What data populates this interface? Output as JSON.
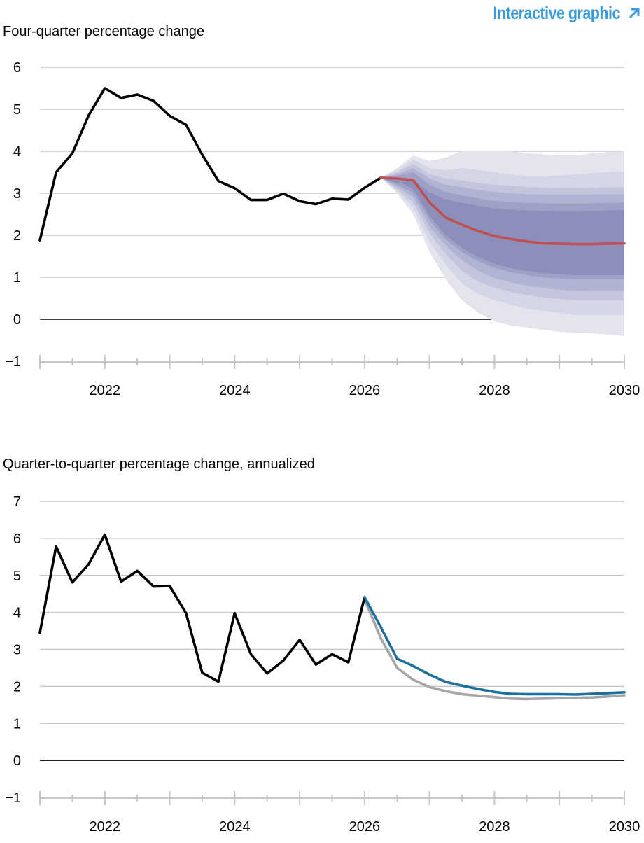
{
  "header": {
    "link_label": "Interactive graphic",
    "link_color": "#3a9ad9"
  },
  "colors": {
    "history": "#000000",
    "forecast_median": "#c0504d",
    "fan": [
      "#e4e4ee",
      "#d4d5e5",
      "#c3c5dc",
      "#b1b3d2",
      "#9ea1c6",
      "#8c8fbb"
    ],
    "series_blue": "#1d6f9c",
    "series_gray": "#a6a6a6",
    "grid": "#c8c8c8"
  },
  "chart_data": [
    {
      "type": "line",
      "title": "Four-quarter percentage change",
      "xlabel": "",
      "ylabel": "",
      "ylim": [
        -1,
        6
      ],
      "xlim": [
        2021.0,
        2030.0
      ],
      "yticks": [
        "−1",
        "0",
        "1",
        "2",
        "3",
        "4",
        "5",
        "6"
      ],
      "xticks": [
        "2022",
        "2024",
        "2026",
        "2028",
        "2030"
      ],
      "grid": true,
      "series": [
        {
          "role": "history",
          "x": [
            2021.0,
            2021.25,
            2021.5,
            2021.75,
            2022.0,
            2022.25,
            2022.5,
            2022.75,
            2023.0,
            2023.25,
            2023.5,
            2023.75,
            2024.0,
            2024.25,
            2024.5,
            2024.75,
            2025.0,
            2025.25,
            2025.5,
            2025.75,
            2026.0,
            2026.25
          ],
          "values": [
            1.88,
            3.5,
            3.95,
            4.85,
            5.5,
            5.27,
            5.35,
            5.2,
            4.84,
            4.63,
            3.92,
            3.29,
            3.12,
            2.84,
            2.84,
            2.99,
            2.81,
            2.74,
            2.87,
            2.85,
            3.13,
            3.37
          ]
        },
        {
          "role": "forecast median",
          "x": [
            2026.25,
            2026.5,
            2026.75,
            2027.0,
            2027.25,
            2027.5,
            2027.75,
            2028.0,
            2028.25,
            2028.5,
            2028.75,
            2029.0,
            2029.25,
            2029.5,
            2029.75,
            2030.0
          ],
          "values": [
            3.37,
            3.35,
            3.31,
            2.78,
            2.42,
            2.25,
            2.1,
            1.98,
            1.91,
            1.85,
            1.81,
            1.8,
            1.79,
            1.79,
            1.8,
            1.81
          ]
        }
      ],
      "bands": {
        "x": [
          2026.25,
          2026.5,
          2026.75,
          2027.0,
          2027.25,
          2027.5,
          2027.75,
          2028.0,
          2028.25,
          2028.5,
          2028.75,
          2029.0,
          2029.25,
          2029.5,
          2029.75,
          2030.0
        ],
        "levels": [
          {
            "upper": [
              3.37,
              3.6,
              3.9,
              3.77,
              3.85,
              4.0,
              4.0,
              4.0,
              4.0,
              3.95,
              3.93,
              3.9,
              3.9,
              3.95,
              3.98,
              4.0
            ],
            "lower": [
              3.37,
              3.0,
              2.5,
              1.6,
              0.95,
              0.45,
              0.15,
              -0.05,
              -0.15,
              -0.2,
              -0.25,
              -0.3,
              -0.32,
              -0.34,
              -0.36,
              -0.4
            ]
          },
          {
            "upper": [
              3.37,
              3.55,
              3.8,
              3.6,
              3.55,
              3.6,
              3.55,
              3.5,
              3.45,
              3.4,
              3.4,
              3.42,
              3.45,
              3.48,
              3.5,
              3.52
            ],
            "lower": [
              3.37,
              3.05,
              2.65,
              1.85,
              1.3,
              0.85,
              0.6,
              0.45,
              0.35,
              0.25,
              0.2,
              0.15,
              0.1,
              0.1,
              0.1,
              0.1
            ]
          },
          {
            "upper": [
              3.37,
              3.5,
              3.7,
              3.45,
              3.35,
              3.3,
              3.25,
              3.2,
              3.18,
              3.15,
              3.13,
              3.12,
              3.12,
              3.13,
              3.14,
              3.15
            ],
            "lower": [
              3.37,
              3.1,
              2.78,
              2.05,
              1.55,
              1.15,
              0.9,
              0.75,
              0.65,
              0.58,
              0.52,
              0.48,
              0.45,
              0.45,
              0.45,
              0.45
            ]
          },
          {
            "upper": [
              3.37,
              3.45,
              3.6,
              3.35,
              3.2,
              3.15,
              3.08,
              3.03,
              3.0,
              2.98,
              2.97,
              2.97,
              2.97,
              2.97,
              2.98,
              2.98
            ],
            "lower": [
              3.37,
              3.15,
              2.9,
              2.2,
              1.75,
              1.4,
              1.15,
              0.98,
              0.88,
              0.8,
              0.75,
              0.7,
              0.68,
              0.67,
              0.67,
              0.67
            ]
          },
          {
            "upper": [
              3.37,
              3.42,
              3.5,
              3.2,
              3.03,
              2.95,
              2.88,
              2.82,
              2.79,
              2.77,
              2.76,
              2.75,
              2.75,
              2.76,
              2.77,
              2.78
            ],
            "lower": [
              3.37,
              3.2,
              3.0,
              2.35,
              1.9,
              1.6,
              1.38,
              1.22,
              1.12,
              1.05,
              1.0,
              0.97,
              0.95,
              0.95,
              0.95,
              0.95
            ]
          }
        ]
      }
    },
    {
      "type": "line",
      "title": "Quarter-to-quarter percentage change, annualized",
      "xlabel": "",
      "ylabel": "",
      "ylim": [
        -1,
        7
      ],
      "xlim": [
        2021.0,
        2030.0
      ],
      "yticks": [
        "−1",
        "0",
        "1",
        "2",
        "3",
        "4",
        "5",
        "6",
        "7"
      ],
      "xticks": [
        "2022",
        "2024",
        "2026",
        "2028",
        "2030"
      ],
      "grid": true,
      "series": [
        {
          "role": "history",
          "x": [
            2021.0,
            2021.25,
            2021.5,
            2021.75,
            2022.0,
            2022.25,
            2022.5,
            2022.75,
            2023.0,
            2023.25,
            2023.5,
            2023.75,
            2024.0,
            2024.25,
            2024.5,
            2024.75,
            2025.0,
            2025.25,
            2025.5,
            2025.75,
            2026.0
          ],
          "values": [
            3.45,
            5.78,
            4.81,
            5.3,
            6.1,
            4.83,
            5.12,
            4.7,
            4.71,
            3.98,
            2.37,
            2.13,
            3.98,
            2.87,
            2.35,
            2.7,
            3.26,
            2.59,
            2.87,
            2.65,
            4.41
          ]
        },
        {
          "role": "forecast (blue)",
          "x": [
            2026.0,
            2026.25,
            2026.5,
            2026.75,
            2027.0,
            2027.25,
            2027.5,
            2027.75,
            2028.0,
            2028.25,
            2028.5,
            2028.75,
            2029.0,
            2029.25,
            2029.5,
            2029.75,
            2030.0
          ],
          "values": [
            4.41,
            3.6,
            2.75,
            2.55,
            2.32,
            2.12,
            2.02,
            1.93,
            1.85,
            1.8,
            1.79,
            1.79,
            1.79,
            1.78,
            1.8,
            1.82,
            1.84
          ]
        },
        {
          "role": "forecast (gray)",
          "x": [
            2026.0,
            2026.25,
            2026.5,
            2026.75,
            2027.0,
            2027.25,
            2027.5,
            2027.75,
            2028.0,
            2028.25,
            2028.5,
            2028.75,
            2029.0,
            2029.25,
            2029.5,
            2029.75,
            2030.0
          ],
          "values": [
            4.35,
            3.3,
            2.5,
            2.18,
            1.98,
            1.87,
            1.79,
            1.75,
            1.71,
            1.67,
            1.66,
            1.67,
            1.68,
            1.69,
            1.7,
            1.73,
            1.76
          ]
        }
      ]
    }
  ]
}
